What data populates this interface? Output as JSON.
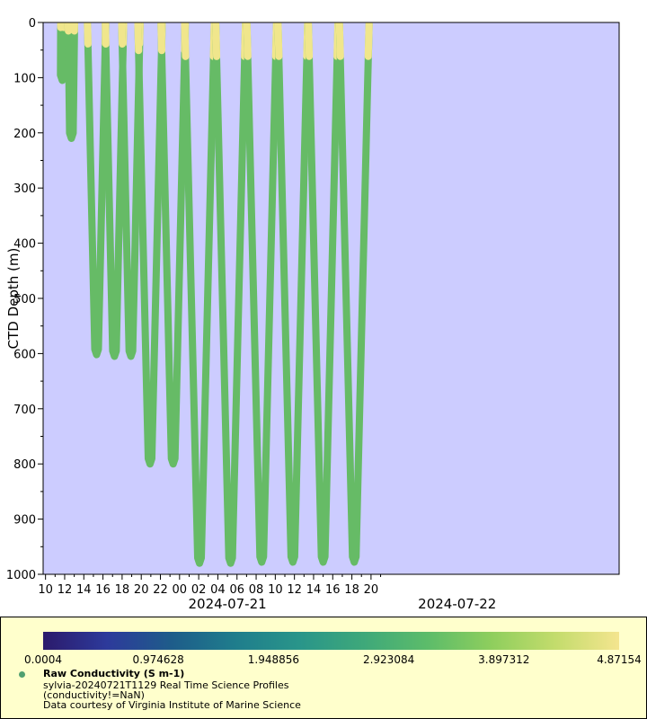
{
  "chart_data": {
    "type": "scatter",
    "ylabel": "CTD Depth (m)",
    "ylim": [
      0,
      1000
    ],
    "y_inverted": true,
    "y_ticks": [
      0,
      100,
      200,
      300,
      400,
      500,
      600,
      700,
      800,
      900,
      1000
    ],
    "x_range": [
      "2024-07-20 09:45",
      "2024-07-22 21:55"
    ],
    "x_tick_labels": [
      "10",
      "12",
      "14",
      "16",
      "18",
      "20",
      "22",
      "00",
      "02",
      "04",
      "06",
      "08",
      "10",
      "12",
      "14",
      "16",
      "18",
      "20"
    ],
    "date_labels": [
      "2024-07-21",
      "2024-07-22"
    ],
    "profile_max_depths": [
      {
        "time": "2024-07-20 11:45",
        "depth": 105
      },
      {
        "time": "2024-07-20 12:42",
        "depth": 210
      },
      {
        "time": "2024-07-20 15:20",
        "depth": 602
      },
      {
        "time": "2024-07-20 17:12",
        "depth": 605
      },
      {
        "time": "2024-07-20 18:55",
        "depth": 605
      },
      {
        "time": "2024-07-20 20:55",
        "depth": 800
      },
      {
        "time": "2024-07-20 23:20",
        "depth": 800
      },
      {
        "time": "2024-07-21 02:05",
        "depth": 980
      },
      {
        "time": "2024-07-21 05:20",
        "depth": 980
      },
      {
        "time": "2024-07-21 08:35",
        "depth": 978
      },
      {
        "time": "2024-07-21 11:50",
        "depth": 978
      },
      {
        "time": "2024-07-21 15:00",
        "depth": 978
      },
      {
        "time": "2024-07-21 18:15",
        "depth": 978
      }
    ],
    "grid": false,
    "colorbar": {
      "variable": "Raw Conductivity (S m-1)",
      "min": 0.0004,
      "max": 4.87154,
      "tick_labels": [
        "0.0004",
        "0.974628",
        "1.948856",
        "2.923084",
        "3.897312",
        "4.87154"
      ],
      "colors": [
        "#2b1a6b",
        "#2d3a9b",
        "#1e5c8a",
        "#1f7d8c",
        "#29958a",
        "#3ea87a",
        "#5cbc6a",
        "#8ece5d",
        "#c3dc6c",
        "#f4e58f"
      ]
    },
    "plot_background": "#ccccff",
    "marker_color_typical": "#66bb66",
    "marker_color_surface": "#f0e68c"
  },
  "legend": {
    "title": "Raw Conductivity (S m-1)",
    "line1": "sylvia-20240721T1129 Real Time Science Profiles",
    "line2": "(conductivity!=NaN)",
    "line3": "Data courtesy of Virginia Institute of Marine Science"
  }
}
